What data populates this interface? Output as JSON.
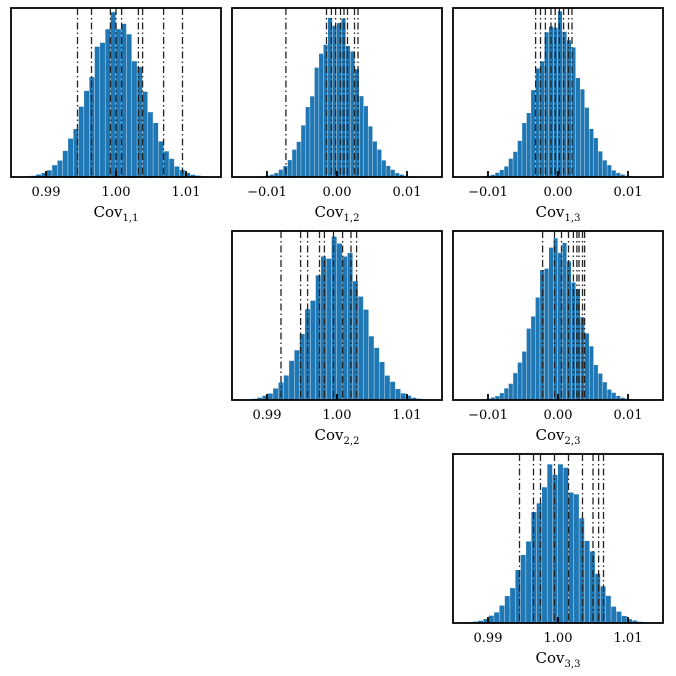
{
  "colors": {
    "bar": "#1f77b4",
    "frame": "#000000",
    "vline": "#222222"
  },
  "chart_data": [
    {
      "type": "bar",
      "xlim": [
        0.985,
        1.015
      ],
      "xticks": [
        0.99,
        1.0,
        1.01
      ],
      "tick_labels": [
        "0.99",
        "1.00",
        "1.01"
      ],
      "xlabel": "Cov",
      "xlabel_sub": "1,1",
      "center": 1.0,
      "sd": 0.0038,
      "vlines": [
        0.9945,
        0.9965,
        0.9992,
        1.0,
        1.0008,
        1.0032,
        1.0038,
        1.0068,
        1.0095
      ]
    },
    {
      "type": "bar",
      "xlim": [
        -0.015,
        0.015
      ],
      "xticks": [
        -0.01,
        0.0,
        0.01
      ],
      "tick_labels": [
        "−0.01",
        "0.00",
        "0.01"
      ],
      "xlabel": "Cov",
      "xlabel_sub": "1,2",
      "center": 0.0,
      "sd": 0.0032,
      "vlines": [
        -0.0073,
        -0.0015,
        -0.0008,
        -0.0002,
        0.0005,
        0.001,
        0.0015,
        0.0025,
        0.003
      ]
    },
    {
      "type": "bar",
      "xlim": [
        -0.015,
        0.015
      ],
      "xticks": [
        -0.01,
        0.0,
        0.01
      ],
      "tick_labels": [
        "−0.01",
        "0.00",
        "0.01"
      ],
      "xlabel": "Cov",
      "xlabel_sub": "1,3",
      "center": 0.0,
      "sd": 0.0032,
      "vlines": [
        -0.0032,
        -0.0025,
        -0.0018,
        -0.001,
        -0.0004,
        0.0002,
        0.0008,
        0.0015,
        0.002
      ]
    },
    {
      "type": "bar",
      "xlim": [
        0.985,
        1.015
      ],
      "xticks": [
        0.99,
        1.0,
        1.01
      ],
      "tick_labels": [
        "0.99",
        "1.00",
        "1.01"
      ],
      "xlabel": "Cov",
      "xlabel_sub": "2,2",
      "center": 1.0,
      "sd": 0.0038,
      "vlines": [
        0.992,
        0.9948,
        0.9958,
        0.9975,
        0.9982,
        0.9995,
        1.0008,
        1.002,
        1.0028
      ]
    },
    {
      "type": "bar",
      "xlim": [
        -0.015,
        0.015
      ],
      "xticks": [
        -0.01,
        0.0,
        0.01
      ],
      "tick_labels": [
        "−0.01",
        "0.00",
        "0.01"
      ],
      "xlabel": "Cov",
      "xlabel_sub": "2,3",
      "center": 0.0,
      "sd": 0.0032,
      "vlines": [
        -0.0022,
        -0.0005,
        0.0005,
        0.0015,
        0.0022,
        0.0027,
        0.003,
        0.0035,
        0.0038
      ]
    },
    {
      "type": "bar",
      "xlim": [
        0.985,
        1.015
      ],
      "xticks": [
        0.99,
        1.0,
        1.01
      ],
      "tick_labels": [
        "0.99",
        "1.00",
        "1.01"
      ],
      "xlabel": "Cov",
      "xlabel_sub": "3,3",
      "center": 1.0,
      "sd": 0.0038,
      "vlines": [
        0.9945,
        0.9965,
        0.9975,
        0.9995,
        1.0015,
        1.0035,
        1.005,
        1.0058,
        1.0065
      ]
    }
  ]
}
